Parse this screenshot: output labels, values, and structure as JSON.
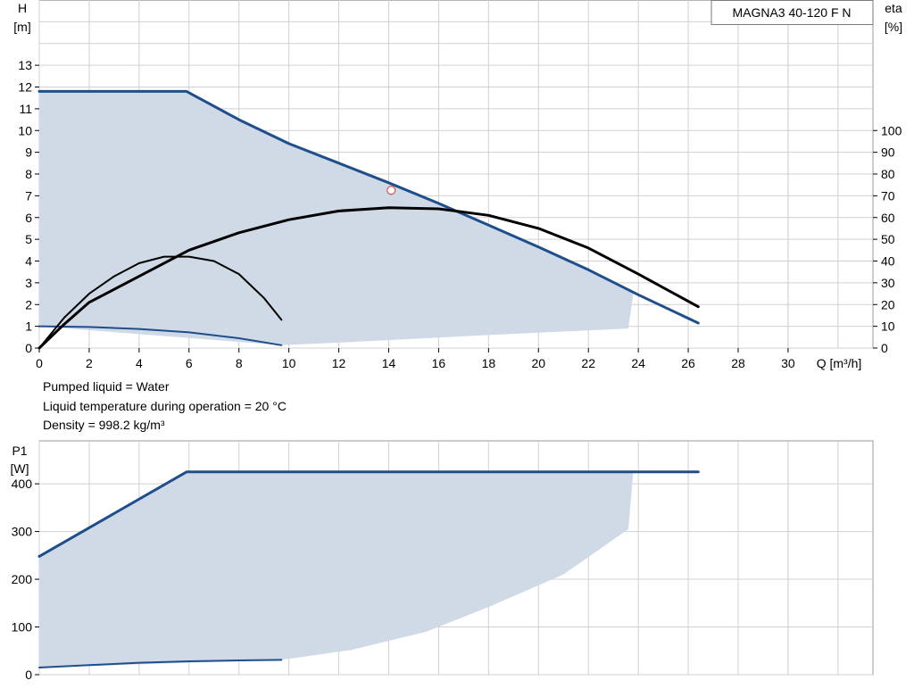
{
  "notes": {
    "liquid": "Pumped liquid = Water",
    "temperature": "Liquid temperature during operation = 20 °C",
    "density": "Density = 998.2 kg/m³"
  },
  "colors": {
    "curve_blue": "#1f4e8c",
    "eta_black": "#000000",
    "area_fill": "#cfdae6",
    "grid": "#d0d0d0",
    "duty_point": "#e05050"
  },
  "chart_data": [
    {
      "type": "line",
      "title": "MAGNA3 40-120 F N",
      "xlabel": "Q [m³/h]",
      "ylabel_top": "H",
      "ylabel_unit": "[m]",
      "y2label_top": "eta",
      "y2label_unit": "[%]",
      "xlim": [
        0,
        33.4
      ],
      "ylim": [
        0,
        16
      ],
      "y2lim": [
        0,
        160
      ],
      "x_ticks": [
        0,
        2,
        4,
        6,
        8,
        10,
        12,
        14,
        16,
        18,
        20,
        22,
        24,
        26,
        28,
        30
      ],
      "y_ticks": [
        0,
        1,
        2,
        3,
        4,
        5,
        6,
        7,
        8,
        9,
        10,
        11,
        12,
        13
      ],
      "y2_ticks": [
        0,
        10,
        20,
        30,
        40,
        50,
        60,
        70,
        80,
        90,
        100
      ],
      "grid": true,
      "operating_area": {
        "x": [
          0,
          5.9,
          8,
          10,
          12,
          14,
          16,
          18,
          20,
          22,
          23.8,
          23.6,
          18,
          12,
          9.7,
          0
        ],
        "y": [
          11.8,
          11.8,
          10.5,
          9.4,
          8.5,
          7.6,
          6.65,
          5.65,
          4.65,
          3.6,
          2.5,
          0.9,
          0.6,
          0.25,
          0.13,
          1.0
        ]
      },
      "series": [
        {
          "name": "",
          "axis": "H",
          "style": "max-head",
          "x": [
            0,
            5.9,
            8,
            10,
            12,
            14,
            16,
            18,
            20,
            22,
            24,
            26.4
          ],
          "y": [
            11.8,
            11.8,
            10.5,
            9.4,
            8.5,
            7.6,
            6.65,
            5.65,
            4.65,
            3.6,
            2.45,
            1.15
          ]
        },
        {
          "name": "",
          "axis": "H",
          "style": "min-head",
          "x": [
            0,
            2,
            4,
            6,
            8,
            9.7
          ],
          "y": [
            1.0,
            0.97,
            0.88,
            0.72,
            0.45,
            0.13
          ]
        },
        {
          "name": "",
          "axis": "eta",
          "style": "eta-max",
          "x": [
            0,
            1,
            2,
            4,
            6,
            8,
            10,
            12,
            14,
            16,
            18,
            20,
            22,
            24,
            26.4
          ],
          "y": [
            0,
            11,
            21,
            33,
            45,
            53,
            59,
            63,
            64.5,
            64,
            61,
            55,
            46,
            34,
            19
          ]
        },
        {
          "name": "",
          "axis": "eta",
          "style": "eta-min",
          "x": [
            0,
            1,
            2,
            3,
            4,
            5,
            6,
            7,
            8,
            9,
            9.7
          ],
          "y": [
            0,
            14,
            25,
            33,
            39,
            42,
            42,
            40,
            34,
            23,
            13
          ]
        }
      ],
      "duty_point": {
        "x": 14.1,
        "y": 7.25
      }
    },
    {
      "type": "line",
      "ylabel_top": "P1",
      "ylabel_unit": "[W]",
      "xlim": [
        0,
        33.4
      ],
      "ylim": [
        0,
        490
      ],
      "y_ticks": [
        0,
        100,
        200,
        300,
        400
      ],
      "grid": true,
      "operating_area": {
        "x": [
          0,
          5.9,
          23.8,
          23.6,
          21,
          18,
          15.5,
          12.5,
          9.7,
          0
        ],
        "y": [
          248,
          425,
          425,
          305,
          210,
          142,
          90,
          52,
          31,
          15
        ]
      },
      "series": [
        {
          "name": "",
          "style": "p1-max",
          "x": [
            0,
            5.9,
            26.4
          ],
          "y": [
            248,
            425,
            425
          ]
        },
        {
          "name": "",
          "style": "p1-min",
          "x": [
            0,
            2,
            4,
            6,
            8,
            9.7
          ],
          "y": [
            15,
            20,
            25,
            28,
            30,
            31
          ]
        }
      ]
    }
  ]
}
